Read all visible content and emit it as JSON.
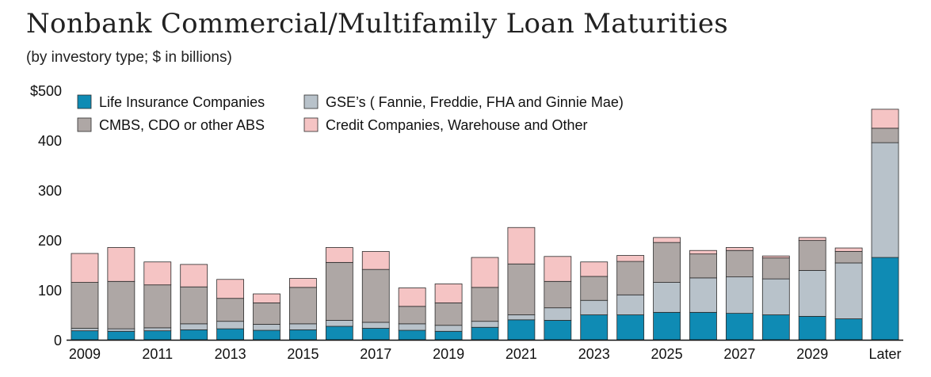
{
  "header": {
    "title": "Nonbank Commercial/Multifamily Loan Maturities",
    "subtitle": "(by investory type; $ in billions)"
  },
  "chart_data": {
    "type": "bar",
    "stacked": true,
    "categories": [
      "2009",
      "2010",
      "2011",
      "2012",
      "2013",
      "2014",
      "2015",
      "2016",
      "2017",
      "2018",
      "2019",
      "2020",
      "2021",
      "2022",
      "2023",
      "2024",
      "2025",
      "2026",
      "2027",
      "2028",
      "2029",
      "2030",
      "Later"
    ],
    "x_tick_labels": [
      "2009",
      "",
      "2011",
      "",
      "2013",
      "",
      "2015",
      "",
      "2017",
      "",
      "2019",
      "",
      "2021",
      "",
      "2023",
      "",
      "2025",
      "",
      "2027",
      "",
      "2029",
      "",
      "Later"
    ],
    "y_tick_labels": [
      "0",
      "100",
      "200",
      "300",
      "400",
      "$500"
    ],
    "ylim": [
      0,
      500
    ],
    "legend_position": "top-left",
    "series": [
      {
        "name": "Life Insurance Companies",
        "color": "#0f8bb4",
        "values": [
          18,
          17,
          18,
          20,
          22,
          19,
          20,
          27,
          23,
          19,
          17,
          25,
          40,
          39,
          50,
          50,
          55,
          55,
          53,
          50,
          47,
          42,
          165
        ]
      },
      {
        "name": "GSE’s ( Fannie, Freddie, FHA and Ginnie Mae)",
        "color": "#b8c2ca",
        "values": [
          5,
          5,
          6,
          12,
          15,
          12,
          12,
          12,
          12,
          13,
          12,
          12,
          10,
          25,
          29,
          40,
          60,
          69,
          73,
          72,
          92,
          112,
          230
        ]
      },
      {
        "name": "CMBS, CDO or other ABS",
        "color": "#aea7a5",
        "values": [
          92,
          95,
          86,
          74,
          46,
          43,
          73,
          116,
          106,
          35,
          45,
          68,
          102,
          53,
          48,
          67,
          80,
          48,
          53,
          42,
          60,
          23,
          29
        ]
      },
      {
        "name": "Credit Companies, Warehouse and Other",
        "color": "#f5c4c4",
        "values": [
          58,
          68,
          46,
          45,
          38,
          18,
          18,
          30,
          36,
          37,
          38,
          60,
          73,
          50,
          29,
          12,
          10,
          7,
          6,
          4,
          6,
          7,
          38
        ]
      }
    ],
    "legend_order": [
      0,
      1,
      2,
      3
    ]
  }
}
